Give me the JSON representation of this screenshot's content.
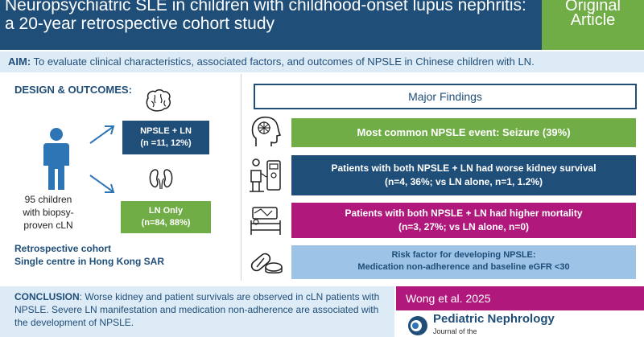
{
  "header": {
    "title_line1": "Neuropsychiatric SLE in children with childhood-onset lupus nephritis:",
    "title_line2": "a 20-year retrospective cohort study",
    "badge_line1": "Original",
    "badge_line2": "Article"
  },
  "aim": {
    "label": "AIM:",
    "text": " To evaluate clinical characteristics, associated factors, and outcomes of NPSLE in Chinese children with LN."
  },
  "design": {
    "title": "DESIGN & OUTCOMES",
    "title_suffix": ":",
    "cohort_line1": "95 children",
    "cohort_line2": "with biopsy-",
    "cohort_line3": "proven cLN",
    "group1_label": "NPSLE + LN",
    "group1_stats": "(n =11, 12%)",
    "group2_label": "LN Only",
    "group2_stats": "(n=84, 88%)",
    "retro_line1": "Retrospective cohort",
    "retro_line2": "Single centre in Hong Kong SAR"
  },
  "findings": {
    "title": "Major Findings",
    "f1": "Most common NPSLE event: Seizure (39%)",
    "f2_line1": "Patients with both NPSLE + LN had worse kidney survival",
    "f2_line2": "(n=4, 36%; vs LN alone, n=1, 1.2%)",
    "f3_line1": "Patients with both NPSLE + LN had higher mortality",
    "f3_line2": "(n=3, 27%; vs LN alone, n=0)",
    "f4_line1": "Risk factor for developing NPSLE:",
    "f4_line2": "Medication non-adherence and baseline eGFR <30"
  },
  "conclusion": {
    "label": "CONCLUSION",
    "text": ": Worse kidney and patient survivals are observed in cLN patients with NPSLE. Severe LN manifestation and medication non-adherence are associated with the development of NPSLE."
  },
  "citation": "Wong et al. 2025",
  "journal": {
    "name": "Pediatric Nephrology",
    "subtitle": "Journal of the"
  },
  "colors": {
    "navy": "#1f4e79",
    "green": "#70ad47",
    "magenta": "#b0187c",
    "light_blue": "#ddebf7",
    "sky": "#9dc3e6"
  }
}
